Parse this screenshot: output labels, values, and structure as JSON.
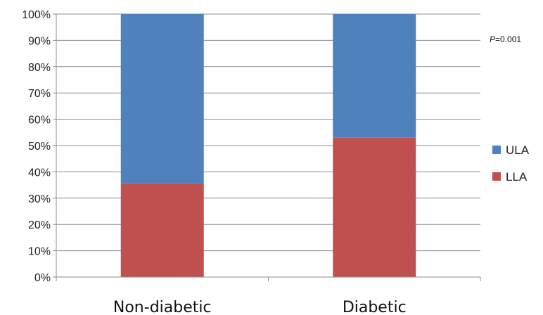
{
  "chart_data": {
    "type": "bar",
    "stacked": true,
    "percent_stacked": true,
    "categories": [
      "Non-diabetic",
      "Diabetic"
    ],
    "series": [
      {
        "name": "LLA",
        "values": [
          35.5,
          53
        ],
        "color": "#C0504D"
      },
      {
        "name": "ULA",
        "values": [
          64.5,
          47
        ],
        "color": "#4F81BD"
      }
    ],
    "ylim": [
      0,
      100
    ],
    "yticks": [
      "0%",
      "10%",
      "20%",
      "30%",
      "40%",
      "50%",
      "60%",
      "70%",
      "80%",
      "90%",
      "100%"
    ],
    "grid": true,
    "legend": "right",
    "legend_order": [
      "ULA",
      "LLA"
    ],
    "annotation": {
      "italic": "P",
      "text": "=0.001"
    }
  }
}
